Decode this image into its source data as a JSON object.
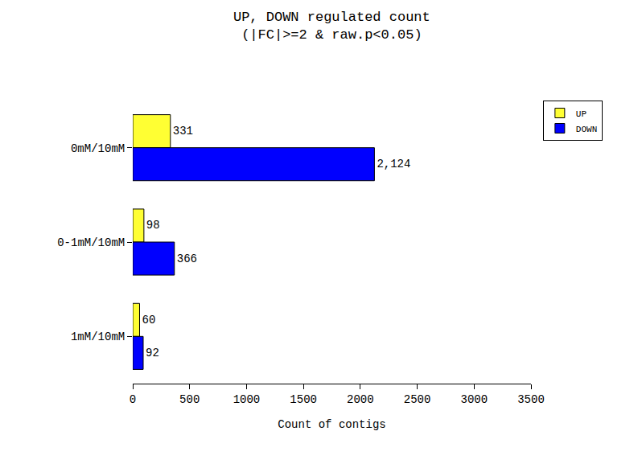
{
  "chart_data": {
    "type": "bar",
    "orientation": "horizontal",
    "title": "UP, DOWN regulated count\n(|FC|>=2 & raw.p<0.05)",
    "x_label": "Count of contigs",
    "categories": [
      "0mM/10mM",
      "0-1mM/10mM",
      "1mM/10mM"
    ],
    "series": [
      {
        "name": "UP",
        "color": "#ffff33",
        "values": [
          331,
          98,
          60
        ]
      },
      {
        "name": "DOWN",
        "color": "#0000ff",
        "values": [
          2124,
          366,
          92
        ],
        "value_labels": [
          "2,124",
          "366",
          "92"
        ]
      }
    ],
    "xlim": [
      0,
      3500
    ],
    "xticks": [
      0,
      500,
      1000,
      1500,
      2000,
      2500,
      3000,
      3500
    ],
    "data_labels": true,
    "grid": false,
    "legend": "top right"
  }
}
